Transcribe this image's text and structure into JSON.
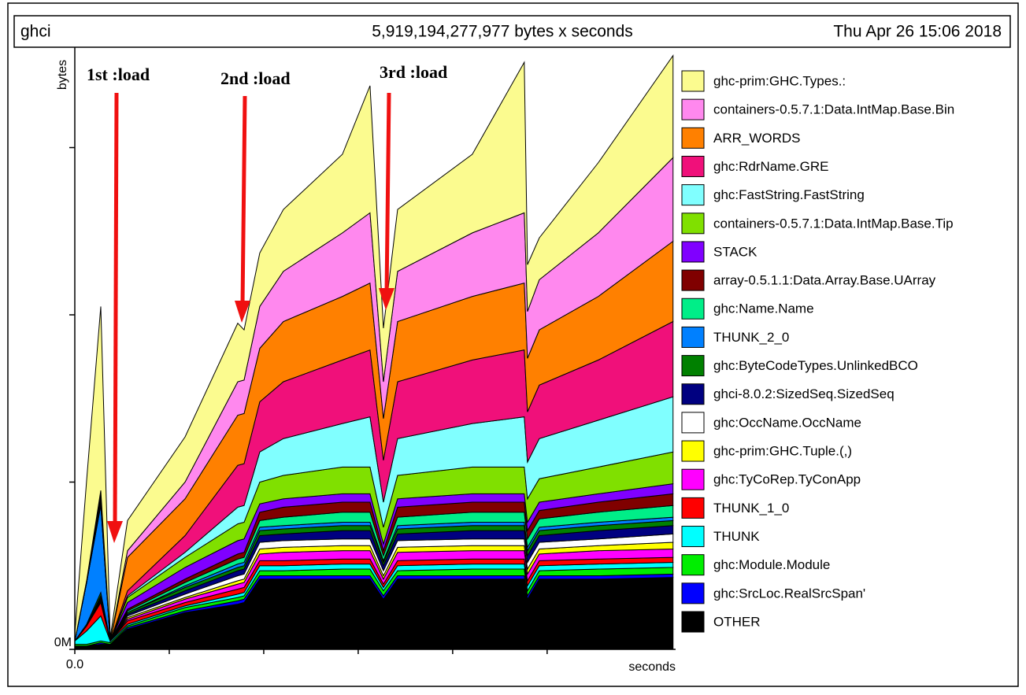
{
  "chart_data": {
    "type": "area",
    "stacked": true,
    "program": "ghci",
    "title": "5,919,194,277,977 bytes x seconds",
    "date": "Thu Apr 26 15:06 2018",
    "ylabel": "bytes",
    "xlabel": "seconds",
    "annotations": [
      "1st  :load",
      "2nd  :load",
      "3rd  :load"
    ],
    "xlim": [
      0,
      6.36
    ],
    "xticks": [
      {
        "value": 0,
        "label": "0.0"
      },
      {
        "value": 1
      },
      {
        "value": 2
      },
      {
        "value": 3
      },
      {
        "value": 4
      },
      {
        "value": 5
      }
    ],
    "ylim": [
      0,
      360
    ],
    "yticks": [
      {
        "value": 0,
        "label": "0M"
      },
      {
        "value": 100
      },
      {
        "value": 200
      },
      {
        "value": 300
      }
    ],
    "x": [
      0,
      0.125,
      0.275,
      0.375,
      0.558,
      1.167,
      1.725,
      1.792,
      1.958,
      2.208,
      2.833,
      3.125,
      3.267,
      3.417,
      4.208,
      4.758,
      4.792,
      4.917,
      5.542,
      6.333
    ],
    "series": [
      {
        "name": "ghc-prim:GHC.Types.:",
        "color": "#fbfb8f",
        "values": [
          4,
          60,
          110,
          2,
          18,
          27,
          35,
          30,
          32,
          37,
          47,
          76,
          32,
          37,
          47,
          90,
          28,
          25,
          42,
          61
        ]
      },
      {
        "name": "containers-0.5.7.1:Data.IntMap.Base.Bin",
        "color": "#ff88ee",
        "values": [
          0,
          0,
          1,
          0,
          4,
          10,
          20,
          20,
          25,
          30,
          38,
          42,
          22,
          30,
          38,
          42,
          28,
          30,
          38,
          50
        ]
      },
      {
        "name": "ARR_WORDS",
        "color": "#ff8000",
        "values": [
          0,
          1,
          2,
          0,
          20,
          22,
          30,
          30,
          32,
          36,
          38,
          40,
          25,
          36,
          38,
          40,
          32,
          33,
          38,
          48
        ]
      },
      {
        "name": "ghc:RdrName.GRE",
        "color": "#f0107a",
        "values": [
          0,
          0,
          1,
          0,
          3,
          10,
          25,
          25,
          30,
          34,
          38,
          40,
          25,
          34,
          38,
          40,
          30,
          32,
          36,
          45
        ]
      },
      {
        "name": "ghc:FastString.FastString",
        "color": "#80ffff",
        "values": [
          0,
          0,
          1,
          0,
          1,
          3,
          10,
          10,
          18,
          22,
          26,
          30,
          15,
          22,
          26,
          30,
          22,
          24,
          28,
          33
        ]
      },
      {
        "name": "containers-0.5.7.1:Data.IntMap.Base.Tip",
        "color": "#80e000",
        "values": [
          0,
          0,
          1,
          0,
          3,
          6,
          10,
          10,
          13,
          14,
          16,
          16,
          10,
          14,
          16,
          16,
          14,
          14,
          16,
          19
        ]
      },
      {
        "name": "STACK",
        "color": "#8000ff",
        "values": [
          0,
          0,
          1,
          0,
          4,
          7,
          8,
          8,
          5,
          5,
          5,
          5,
          4,
          5,
          5,
          5,
          5,
          5,
          5,
          6
        ]
      },
      {
        "name": "array-0.5.1.1:Data.Array.Base.UArray",
        "color": "#800000",
        "values": [
          0,
          0,
          1,
          0,
          1,
          2,
          3,
          3,
          5,
          6,
          6,
          6,
          3,
          6,
          6,
          6,
          5,
          5,
          6,
          7
        ]
      },
      {
        "name": "ghc:Name.Name",
        "color": "#00ee88",
        "values": [
          0,
          0,
          1,
          0,
          1,
          2,
          3,
          3,
          4,
          5,
          6,
          6,
          3,
          5,
          6,
          6,
          5,
          5,
          6,
          7
        ]
      },
      {
        "name": "THUNK_2_0",
        "color": "#0080ff",
        "values": [
          0,
          25,
          52,
          0,
          0,
          1,
          2,
          2,
          2,
          2,
          2,
          2,
          1,
          2,
          2,
          2,
          2,
          2,
          2,
          2
        ]
      },
      {
        "name": "ghc:ByteCodeTypes.UnlinkedBCO",
        "color": "#008000",
        "values": [
          0,
          1,
          2,
          0,
          1,
          2,
          2,
          2,
          3,
          3,
          3,
          3,
          2,
          3,
          3,
          3,
          3,
          3,
          3,
          3
        ]
      },
      {
        "name": "ghci-8.0.2:SizedSeq.SizedSeq",
        "color": "#000080",
        "values": [
          0,
          0,
          1,
          0,
          1,
          2,
          3,
          3,
          4,
          4,
          5,
          5,
          3,
          4,
          5,
          5,
          4,
          4,
          5,
          5
        ]
      },
      {
        "name": "ghc:OccName.OccName",
        "color": "#ffffff",
        "values": [
          0,
          0,
          1,
          0,
          1,
          2,
          3,
          3,
          4,
          4,
          4,
          4,
          3,
          4,
          4,
          4,
          4,
          4,
          4,
          5
        ]
      },
      {
        "name": "ghc-prim:GHC.Tuple.(,)",
        "color": "#ffff00",
        "values": [
          0,
          0,
          1,
          0,
          1,
          1,
          2,
          2,
          3,
          3,
          3,
          3,
          2,
          3,
          3,
          3,
          3,
          3,
          3,
          4
        ]
      },
      {
        "name": "ghc:TyCoRep.TyConApp",
        "color": "#ff00ff",
        "values": [
          0,
          0,
          1,
          0,
          1,
          2,
          3,
          3,
          4,
          5,
          5,
          5,
          3,
          5,
          5,
          5,
          4,
          4,
          5,
          5
        ]
      },
      {
        "name": "THUNK_1_0",
        "color": "#ff0000",
        "values": [
          0,
          3,
          8,
          0,
          2,
          2,
          3,
          3,
          3,
          3,
          3,
          3,
          2,
          3,
          3,
          3,
          3,
          3,
          3,
          3
        ]
      },
      {
        "name": "THUNK",
        "color": "#00ffff",
        "values": [
          2,
          8,
          15,
          1,
          1,
          1,
          2,
          2,
          3,
          3,
          3,
          3,
          2,
          3,
          3,
          3,
          3,
          3,
          3,
          3
        ]
      },
      {
        "name": "ghc:Module.Module",
        "color": "#00ee00",
        "values": [
          1,
          1,
          1,
          1,
          1,
          2,
          2,
          2,
          3,
          3,
          4,
          4,
          3,
          3,
          4,
          4,
          3,
          3,
          4,
          4
        ]
      },
      {
        "name": "ghc:SrcLoc.RealSrcSpan'",
        "color": "#0000ff",
        "values": [
          0,
          0,
          1,
          0,
          1,
          1,
          2,
          2,
          2,
          2,
          2,
          2,
          2,
          2,
          2,
          2,
          2,
          2,
          2,
          2
        ]
      },
      {
        "name": "OTHER",
        "color": "#000000",
        "values": [
          2,
          2,
          3,
          3,
          12,
          22,
          27,
          28,
          42,
          42,
          42,
          42,
          30,
          42,
          42,
          42,
          30,
          42,
          42,
          43
        ]
      }
    ]
  }
}
